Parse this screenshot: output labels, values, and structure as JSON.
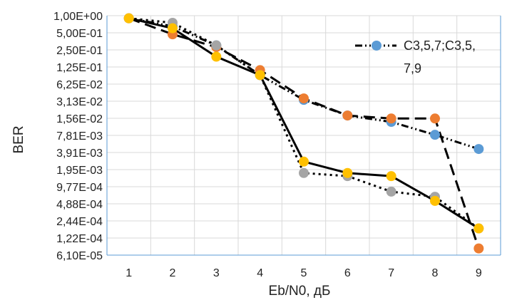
{
  "chart_data": {
    "type": "line",
    "xlabel": "Eb/N0, дБ",
    "ylabel": "BER",
    "x": [
      1,
      2,
      3,
      4,
      5,
      6,
      7,
      8,
      9
    ],
    "y_ticks": [
      "1,00E+00",
      "5,00E-01",
      "2,50E-01",
      "1,25E-01",
      "6,25E-02",
      "3,13E-02",
      "1,56E-02",
      "7,81E-03",
      "3,91E-03",
      "1,95E-03",
      "9,77E-04",
      "4,88E-04",
      "2,44E-04",
      "1,22E-04",
      "6,10E-05"
    ],
    "yscale": "log2",
    "ylim": [
      6.1e-05,
      1
    ],
    "grid": true,
    "legend": {
      "position": "top-right",
      "lines": [
        "C3,5,7;C3,5,",
        "7,9"
      ]
    },
    "series": [
      {
        "color": "#5b9bd5",
        "line": "dash-dot-dot",
        "values": [
          0.9,
          0.65,
          0.3,
          0.09,
          0.033,
          0.0175,
          0.0135,
          0.008,
          0.0045
        ]
      },
      {
        "color": "#ed7d31",
        "line": "dash",
        "values": [
          0.9,
          0.47,
          0.28,
          0.11,
          0.035,
          0.0175,
          0.0155,
          0.0155,
          8e-05
        ]
      },
      {
        "color": "#a5a5a5",
        "line": "dot",
        "values": [
          0.9,
          0.75,
          0.3,
          0.09,
          0.0017,
          0.0015,
          0.0008,
          0.00065,
          0.00018
        ]
      },
      {
        "color": "#ffc000",
        "line": "solid",
        "values": [
          0.9,
          0.6,
          0.19,
          0.09,
          0.0027,
          0.0017,
          0.0015,
          0.00055,
          0.00018
        ]
      }
    ]
  }
}
